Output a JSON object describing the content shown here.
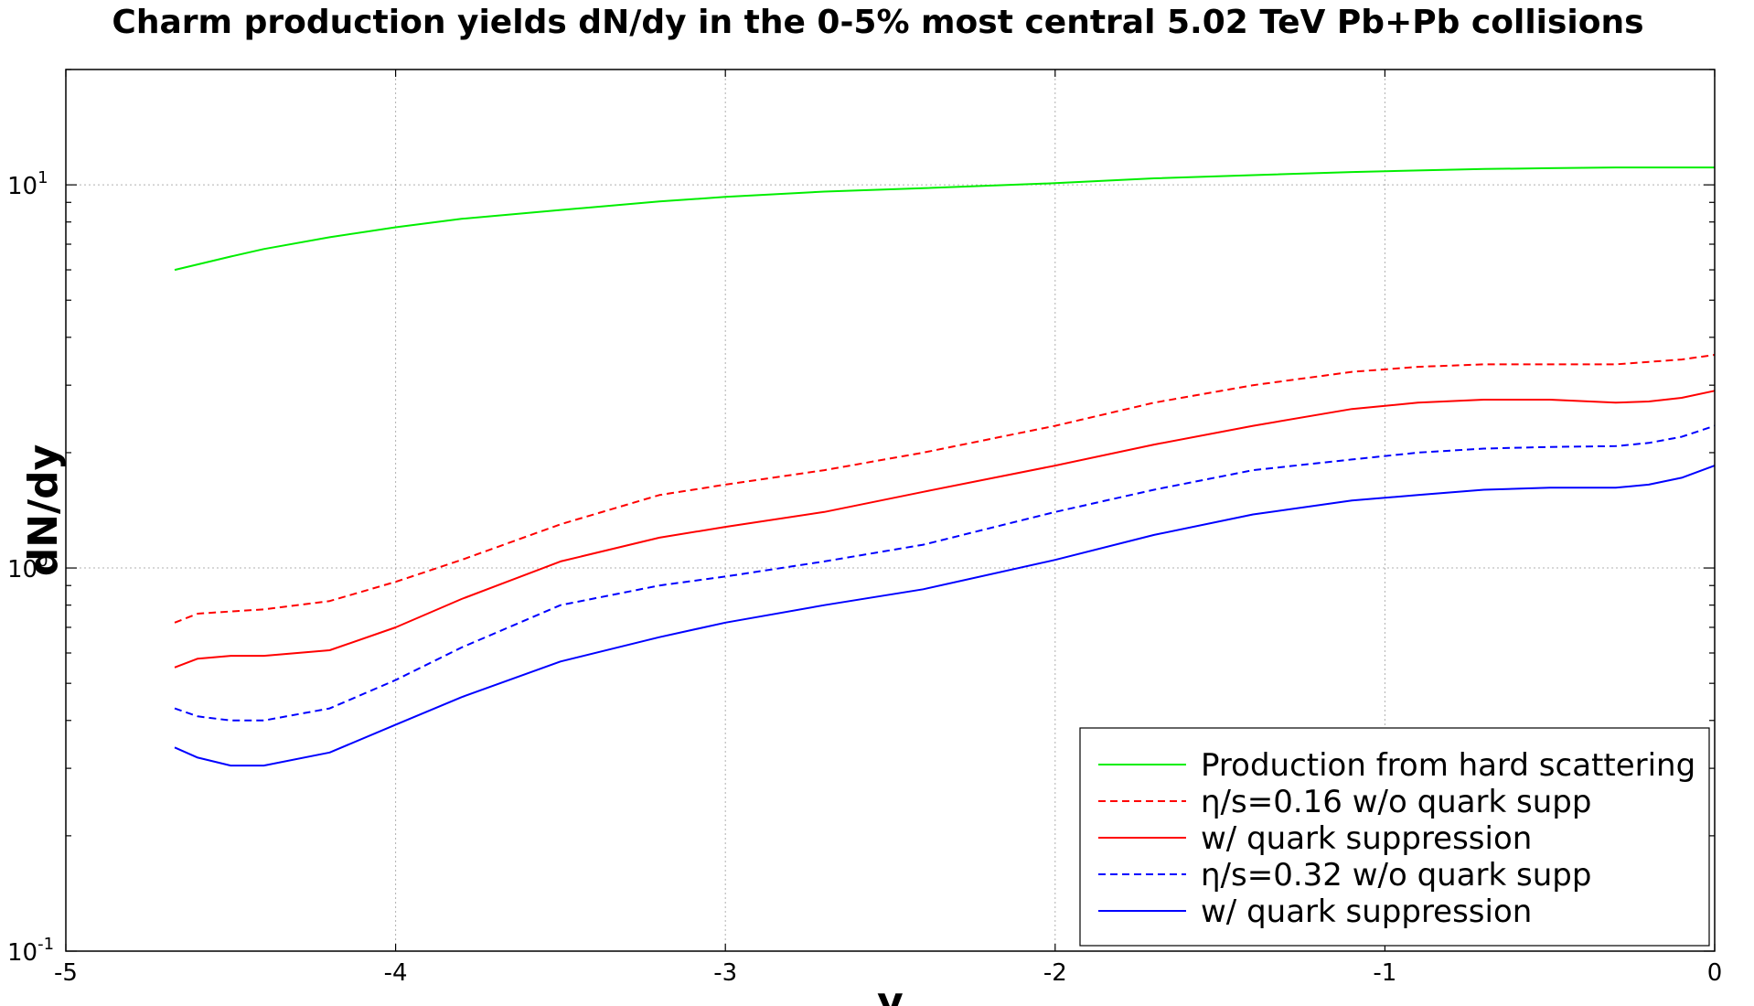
{
  "chart_data": {
    "type": "line",
    "title": "Charm production yields dN/dy in the 0-5% most central 5.02 TeV Pb+Pb collisions",
    "xlabel": "y",
    "ylabel": "dN/dy",
    "xlim": [
      -5,
      0
    ],
    "ylim": [
      0.1,
      20
    ],
    "yscale": "log",
    "grid": true,
    "legend_position": "lower-right",
    "x_ticks": [
      "-5",
      "-4",
      "-3",
      "-2",
      "-1",
      "0"
    ],
    "y_ticks": [
      {
        "base": "10",
        "exp": "-1",
        "value": 0.1
      },
      {
        "base": "10",
        "exp": "0",
        "value": 1
      },
      {
        "base": "10",
        "exp": "1",
        "value": 10
      }
    ],
    "x": [
      -4.67,
      -4.6,
      -4.5,
      -4.4,
      -4.2,
      -4.0,
      -3.8,
      -3.5,
      -3.2,
      -3.0,
      -2.7,
      -2.4,
      -2.0,
      -1.7,
      -1.4,
      -1.1,
      -0.9,
      -0.7,
      -0.5,
      -0.3,
      -0.2,
      -0.1,
      0.0
    ],
    "series": [
      {
        "name": "Production from hard scattering",
        "color": "#00ee00",
        "dash": "solid",
        "values": [
          6.0,
          6.2,
          6.5,
          6.8,
          7.3,
          7.75,
          8.15,
          8.6,
          9.05,
          9.3,
          9.6,
          9.8,
          10.1,
          10.4,
          10.6,
          10.8,
          10.9,
          11.0,
          11.05,
          11.1,
          11.1,
          11.1,
          11.1
        ]
      },
      {
        "name": "η/s=0.16 w/o quark supp",
        "color": "#ff0000",
        "dash": "dashed",
        "values": [
          0.72,
          0.76,
          0.77,
          0.78,
          0.82,
          0.92,
          1.05,
          1.3,
          1.55,
          1.65,
          1.8,
          2.0,
          2.35,
          2.7,
          3.0,
          3.25,
          3.35,
          3.4,
          3.4,
          3.4,
          3.45,
          3.5,
          3.6
        ]
      },
      {
        "name": "w/ quark suppression",
        "color": "#ff0000",
        "dash": "solid",
        "values": [
          0.55,
          0.58,
          0.59,
          0.59,
          0.61,
          0.7,
          0.83,
          1.04,
          1.2,
          1.28,
          1.4,
          1.58,
          1.85,
          2.1,
          2.35,
          2.6,
          2.7,
          2.75,
          2.75,
          2.7,
          2.72,
          2.78,
          2.9
        ]
      },
      {
        "name": "η/s=0.32 w/o quark supp",
        "color": "#0000ff",
        "dash": "dashed",
        "values": [
          0.43,
          0.41,
          0.4,
          0.4,
          0.43,
          0.51,
          0.62,
          0.8,
          0.9,
          0.95,
          1.04,
          1.15,
          1.4,
          1.6,
          1.8,
          1.92,
          2.0,
          2.05,
          2.07,
          2.08,
          2.12,
          2.2,
          2.35
        ]
      },
      {
        "name": "w/ quark suppression",
        "color": "#0000ff",
        "dash": "solid",
        "values": [
          0.34,
          0.32,
          0.305,
          0.305,
          0.33,
          0.39,
          0.46,
          0.57,
          0.66,
          0.72,
          0.8,
          0.88,
          1.05,
          1.22,
          1.38,
          1.5,
          1.55,
          1.6,
          1.62,
          1.62,
          1.65,
          1.72,
          1.85
        ]
      }
    ]
  }
}
